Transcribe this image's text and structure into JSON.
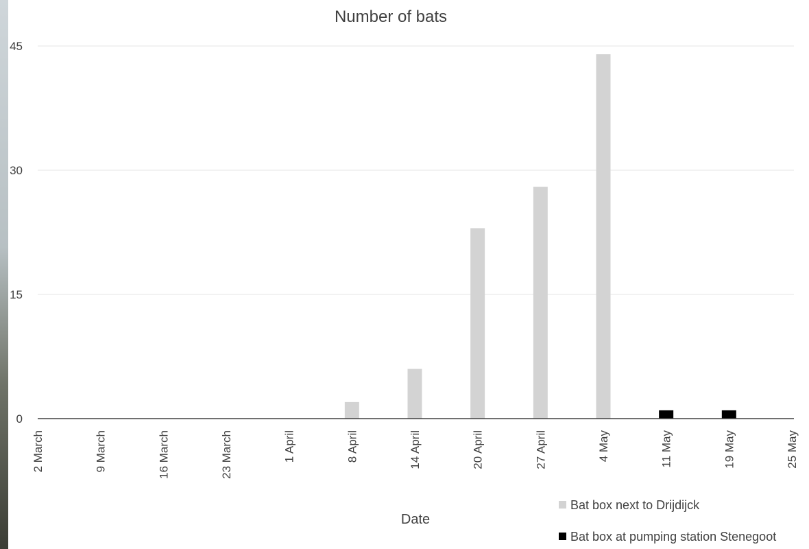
{
  "chart_data": {
    "type": "bar",
    "title": "Number of bats",
    "xlabel": "Date",
    "ylabel": "",
    "ylim": [
      0,
      45
    ],
    "yticks": [
      0,
      15,
      30,
      45
    ],
    "grid": true,
    "legend_position": "bottom-right",
    "categories": [
      "2 March",
      "9 March",
      "16 March",
      "23 March",
      "1 April",
      "8 April",
      "14 April",
      "20 April",
      "27 April",
      "4 May",
      "11 May",
      "19 May",
      "25 May"
    ],
    "series": [
      {
        "name": "Bat box next to Drijdijck",
        "color": "#d3d3d3",
        "values": [
          0,
          0,
          0,
          0,
          0,
          2,
          6,
          23,
          28,
          44,
          0,
          0,
          0
        ]
      },
      {
        "name": "Bat box at pumping station Stenegoot",
        "color": "#000000",
        "values": [
          0,
          0,
          0,
          0,
          0,
          0,
          0,
          0,
          0,
          0,
          1,
          1,
          0
        ]
      }
    ]
  }
}
